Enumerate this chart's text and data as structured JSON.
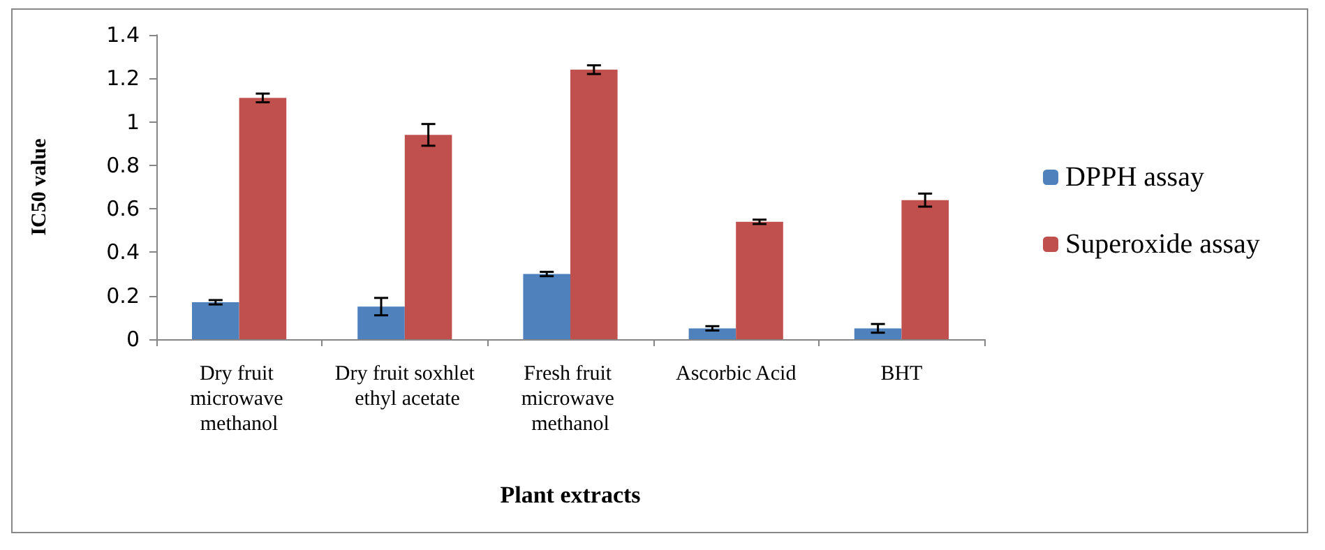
{
  "chart_data": {
    "type": "bar",
    "xlabel": "Plant extracts",
    "ylabel": "IC50 value",
    "categories": [
      "Dry fruit microwave methanol",
      "Dry fruit soxhlet ethyl acetate",
      "Fresh fruit microwave methanol",
      "Ascorbic Acid",
      "BHT"
    ],
    "series": [
      {
        "name": "DPPH assay",
        "color": "#4f81bd",
        "values": [
          0.17,
          0.15,
          0.3,
          0.05,
          0.05
        ],
        "errors": [
          0.01,
          0.04,
          0.01,
          0.01,
          0.02
        ]
      },
      {
        "name": "Superoxide assay",
        "color": "#c0504d",
        "values": [
          1.11,
          0.94,
          1.24,
          0.54,
          0.64
        ],
        "errors": [
          0.02,
          0.05,
          0.02,
          0.01,
          0.03
        ]
      }
    ],
    "ylim": [
      0,
      1.4
    ],
    "yticks": [
      0,
      0.2,
      0.4,
      0.6,
      0.8,
      1,
      1.2,
      1.4
    ],
    "grid": false,
    "legend": "right"
  }
}
